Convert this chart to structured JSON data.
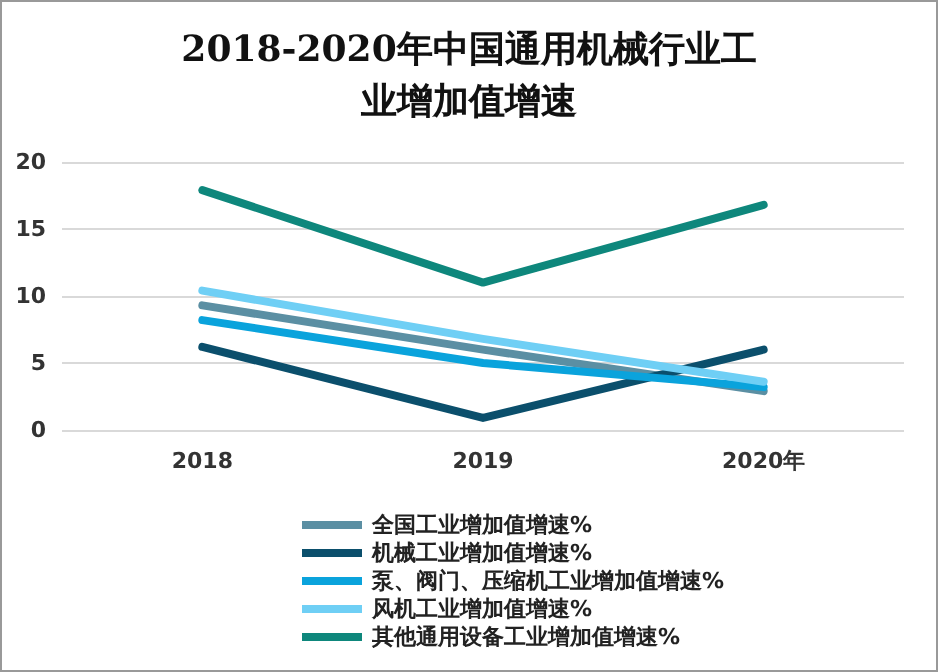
{
  "chart_data": {
    "type": "line",
    "title": "2018-2020年中国通用机械行业工业增加值增速",
    "categories": [
      "2018",
      "2019",
      "2020年"
    ],
    "ylim": [
      0,
      20
    ],
    "yticks": [
      0,
      5,
      10,
      15,
      20
    ],
    "grid": "y",
    "legend": "bottom",
    "marker": "none",
    "line_style": "solid",
    "series": [
      {
        "name": "全国工业增加值增速%",
        "color": "#5b8fa3",
        "values": [
          9.3,
          6,
          2.9
        ]
      },
      {
        "name": "机械工业增加值增速%",
        "color": "#0b4f6c",
        "values": [
          6.2,
          0.9,
          6
        ]
      },
      {
        "name": "泵、阀门、压缩机工业增加值增速%",
        "color": "#0aa3dc",
        "values": [
          8.2,
          5,
          3.2
        ]
      },
      {
        "name": "风机工业增加值增速%",
        "color": "#6fcff5",
        "values": [
          10.4,
          6.8,
          3.6
        ]
      },
      {
        "name": "其他通用设备工业增加值增速%",
        "color": "#0e877c",
        "values": [
          17.9,
          11,
          16.8
        ]
      }
    ]
  }
}
